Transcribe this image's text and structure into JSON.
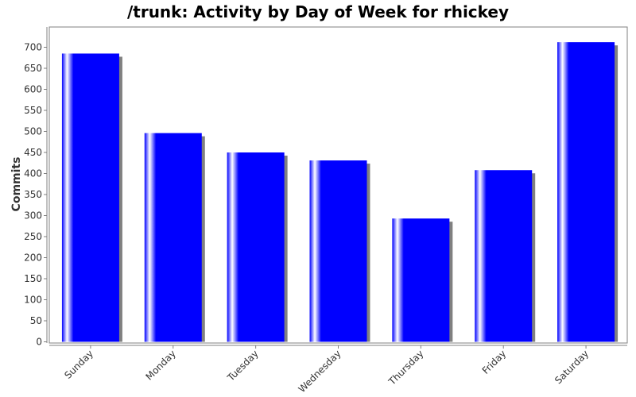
{
  "chart_data": {
    "type": "bar",
    "title": "/trunk: Activity by Day of Week for rhickey",
    "xlabel": "",
    "ylabel": "Commits",
    "categories": [
      "Sunday",
      "Monday",
      "Tuesday",
      "Wednesday",
      "Thursday",
      "Friday",
      "Saturday"
    ],
    "values": [
      685,
      496,
      450,
      431,
      293,
      408,
      712
    ],
    "ylim": [
      0,
      740
    ],
    "yticks": [
      0,
      50,
      100,
      150,
      200,
      250,
      300,
      350,
      400,
      450,
      500,
      550,
      600,
      650,
      700
    ],
    "grid": false,
    "legend": "none",
    "colors": {
      "bar": "#0000ff",
      "highlight": "#ffffff",
      "shadow": "#808080",
      "axis": "#808080"
    }
  }
}
